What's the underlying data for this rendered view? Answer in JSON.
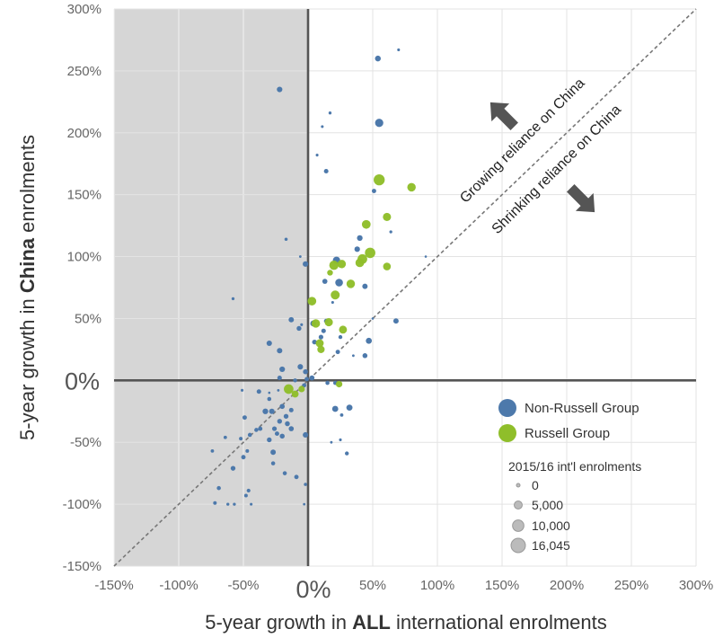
{
  "chart_data": {
    "type": "scatter",
    "title": "",
    "xlabel": {
      "prefix": "5-year growth in ",
      "bold": "ALL",
      "suffix": " international enrolments"
    },
    "ylabel": {
      "prefix": "5-year growth in ",
      "bold": "China",
      "suffix": " enrolments"
    },
    "xlim": [
      -150,
      300
    ],
    "ylim": [
      -150,
      300
    ],
    "grid": true,
    "x_ticks": [
      "-150%",
      "-100%",
      "-50%",
      "0%",
      "50%",
      "100%",
      "150%",
      "200%",
      "250%",
      "300%"
    ],
    "y_ticks": [
      "300%",
      "250%",
      "200%",
      "150%",
      "100%",
      "50%",
      "0%",
      "-50%",
      "-100%",
      "-150%"
    ],
    "x_zero_label": "0%",
    "y_zero_label": "0%",
    "shaded_region": "x < 0",
    "diagonal": "y = x (dashed)",
    "annotations": {
      "growing": "Growing reliance on China",
      "shrinking": "Shrinking reliance on China"
    },
    "colors": {
      "non_russell": "#4d79ab",
      "russell": "#8fbe2a",
      "shade": "#d6d6d6",
      "grid": "#e3e3e3",
      "axis": "#555555",
      "arrow": "#555555"
    },
    "legend": {
      "placement": "bottom-right",
      "series": [
        "Non-Russell Group",
        "Russell Group"
      ],
      "size_title": "2015/16 int'l enrolments",
      "size_labels": [
        "0",
        "5,000",
        "10,000",
        "16,045"
      ],
      "size_values": [
        0,
        5000,
        10000,
        16045
      ]
    },
    "series": [
      {
        "name": "Non-Russell Group",
        "points": [
          [
            -22,
            235,
            2400
          ],
          [
            54,
            260,
            2600
          ],
          [
            70,
            267,
            600
          ],
          [
            55,
            208,
            5300
          ],
          [
            17,
            216,
            700
          ],
          [
            11,
            205,
            600
          ],
          [
            7,
            182,
            600
          ],
          [
            14,
            169,
            1600
          ],
          [
            51,
            153,
            1500
          ],
          [
            64,
            120,
            700
          ],
          [
            -17,
            114,
            800
          ],
          [
            -2,
            94,
            2400
          ],
          [
            40,
            115,
            2500
          ],
          [
            38,
            106,
            2400
          ],
          [
            22,
            97,
            4200
          ],
          [
            13,
            80,
            2000
          ],
          [
            24,
            79,
            4600
          ],
          [
            44,
            76,
            2200
          ],
          [
            -6,
            100,
            500
          ],
          [
            91,
            100,
            400
          ],
          [
            19,
            63,
            600
          ],
          [
            -58,
            66,
            700
          ],
          [
            -13,
            49,
            2200
          ],
          [
            4,
            46,
            2700
          ],
          [
            -7,
            42,
            1800
          ],
          [
            68,
            48,
            2200
          ],
          [
            14,
            48,
            1500
          ],
          [
            12,
            40,
            1600
          ],
          [
            10,
            35,
            1700
          ],
          [
            25,
            35,
            1200
          ],
          [
            5,
            31,
            1800
          ],
          [
            -30,
            30,
            2300
          ],
          [
            -22,
            24,
            2300
          ],
          [
            47,
            32,
            2800
          ],
          [
            23,
            23,
            1500
          ],
          [
            44,
            20,
            1900
          ],
          [
            -20,
            9,
            2400
          ],
          [
            -6,
            11,
            2300
          ],
          [
            -2,
            7,
            1900
          ],
          [
            3,
            2,
            2000
          ],
          [
            -1,
            1,
            1500
          ],
          [
            -10,
            0,
            1200
          ],
          [
            15,
            -2,
            1300
          ],
          [
            -22,
            2,
            1600
          ],
          [
            -3,
            -4,
            1400
          ],
          [
            21,
            -2,
            1300
          ],
          [
            -38,
            -9,
            1600
          ],
          [
            -20,
            -21,
            2000
          ],
          [
            -28,
            -25,
            2300
          ],
          [
            -33,
            -25,
            2500
          ],
          [
            21,
            -23,
            2900
          ],
          [
            32,
            -22,
            2900
          ],
          [
            -30,
            -15,
            1300
          ],
          [
            -13,
            -24,
            1600
          ],
          [
            -17,
            -29,
            1800
          ],
          [
            -49,
            -30,
            1500
          ],
          [
            -22,
            -33,
            1800
          ],
          [
            -16,
            -35,
            1900
          ],
          [
            -26,
            -39,
            1700
          ],
          [
            -13,
            -39,
            2000
          ],
          [
            -37,
            -39,
            1500
          ],
          [
            -45,
            -44,
            1300
          ],
          [
            -20,
            -45,
            1900
          ],
          [
            -30,
            -48,
            1800
          ],
          [
            -24,
            -43,
            1500
          ],
          [
            -2,
            -44,
            2300
          ],
          [
            -40,
            -40,
            1300
          ],
          [
            -52,
            -47,
            1000
          ],
          [
            -64,
            -46,
            900
          ],
          [
            -27,
            -58,
            2200
          ],
          [
            -47,
            -57,
            1000
          ],
          [
            -50,
            -62,
            1500
          ],
          [
            -58,
            -71,
            1800
          ],
          [
            -27,
            -67,
            1300
          ],
          [
            -18,
            -75,
            1300
          ],
          [
            -9,
            -78,
            1500
          ],
          [
            -46,
            -89,
            1100
          ],
          [
            -48,
            -93,
            1000
          ],
          [
            -69,
            -87,
            1300
          ],
          [
            -74,
            -57,
            900
          ],
          [
            -72,
            -99,
            1000
          ],
          [
            30,
            -59,
            1200
          ],
          [
            25,
            -48,
            600
          ],
          [
            18,
            -50,
            500
          ],
          [
            -2,
            -84,
            800
          ],
          [
            -57,
            -100,
            700
          ],
          [
            -62,
            -100,
            700
          ],
          [
            -51,
            -8,
            600
          ],
          [
            -44,
            -100,
            600
          ],
          [
            -3,
            -100,
            500
          ],
          [
            -23,
            -8,
            500
          ],
          [
            -5,
            45,
            600
          ],
          [
            50,
            50,
            400
          ],
          [
            35,
            20,
            500
          ],
          [
            -30,
            -10,
            400
          ],
          [
            26,
            -28,
            900
          ]
        ]
      },
      {
        "name": "Russell Group",
        "points": [
          [
            55,
            162,
            9500
          ],
          [
            80,
            156,
            5600
          ],
          [
            61,
            132,
            5200
          ],
          [
            45,
            126,
            5900
          ],
          [
            48,
            103,
            8500
          ],
          [
            42,
            98,
            7300
          ],
          [
            40,
            95,
            5800
          ],
          [
            26,
            94,
            5500
          ],
          [
            20,
            93,
            6700
          ],
          [
            17,
            87,
            2600
          ],
          [
            33,
            78,
            5600
          ],
          [
            61,
            92,
            4600
          ],
          [
            21,
            69,
            6300
          ],
          [
            3,
            64,
            5800
          ],
          [
            6,
            46,
            5600
          ],
          [
            16,
            47,
            5200
          ],
          [
            27,
            41,
            4900
          ],
          [
            9,
            30,
            5000
          ],
          [
            10,
            25,
            4200
          ],
          [
            -15,
            -7,
            7200
          ],
          [
            -10,
            -11,
            3800
          ],
          [
            -5,
            -7,
            3200
          ],
          [
            24,
            -3,
            3300
          ]
        ]
      }
    ]
  }
}
